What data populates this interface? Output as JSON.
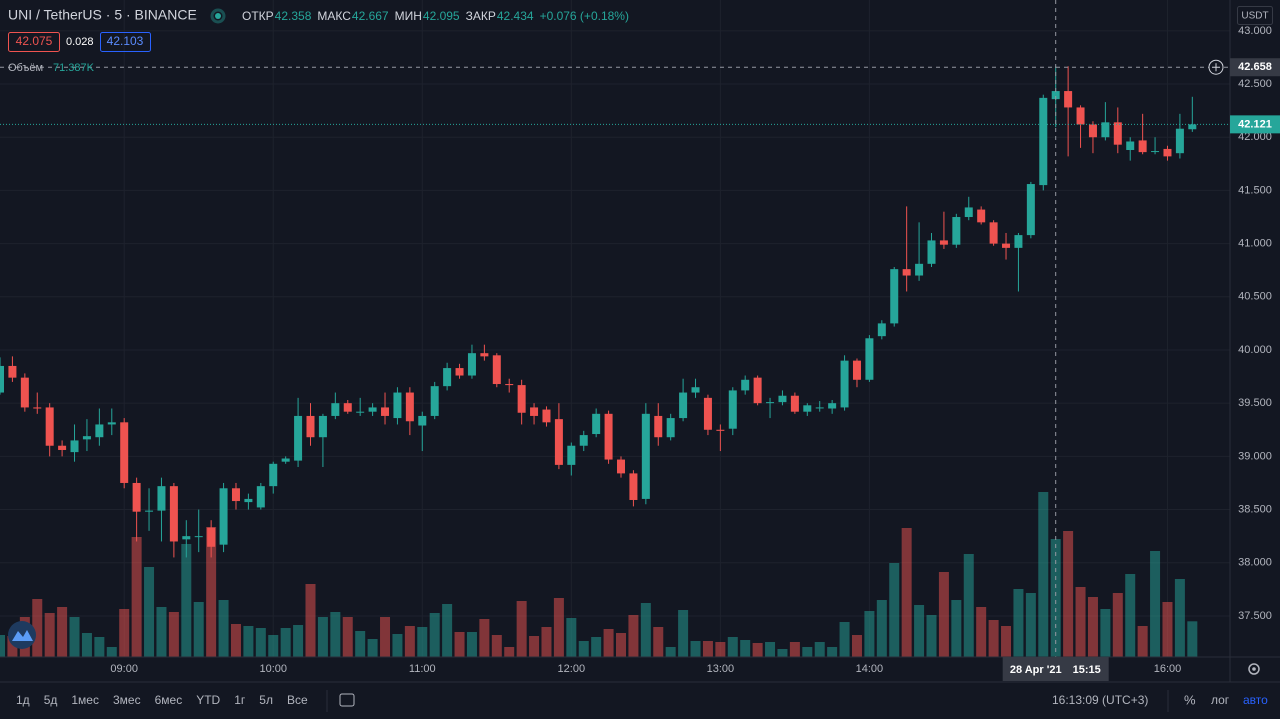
{
  "header": {
    "title": "UNI / TetherUS · 5 · BINANCE",
    "ohlc": [
      {
        "label": "ОТКР",
        "value": 42.358
      },
      {
        "label": "МАКС",
        "value": 42.667
      },
      {
        "label": "МИН",
        "value": 42.095
      },
      {
        "label": "ЗАКР",
        "value": 42.434
      }
    ],
    "change": "+0.076 (+0.18%)",
    "bid": 42.075,
    "spread": 0.028,
    "ask": 42.103,
    "currency": "USDT"
  },
  "toolbar": {
    "ranges": [
      "1д",
      "5д",
      "1мес",
      "3мес",
      "6мес",
      "YTD",
      "1г",
      "5л",
      "Все"
    ],
    "clock": "16:13:09 (UTC+3)",
    "percent": "%",
    "log": "лог",
    "auto": "авто"
  },
  "chart_data": {
    "type": "candlestick",
    "up_color": "#26a69a",
    "down_color": "#ef5350",
    "grid": true,
    "categories": [
      null,
      null,
      null,
      null,
      null,
      null,
      null,
      null,
      null,
      null,
      "09:00",
      null,
      null,
      null,
      null,
      null,
      null,
      null,
      null,
      null,
      null,
      null,
      "10:00",
      null,
      null,
      null,
      null,
      null,
      null,
      null,
      null,
      null,
      null,
      null,
      "11:00",
      null,
      null,
      null,
      null,
      null,
      null,
      null,
      null,
      null,
      null,
      null,
      "12:00",
      null,
      null,
      null,
      null,
      null,
      null,
      null,
      null,
      null,
      null,
      null,
      "13:00",
      null,
      null,
      null,
      null,
      null,
      null,
      null,
      null,
      null,
      null,
      null,
      "14:00",
      null,
      null,
      null,
      null,
      null,
      null,
      null,
      null,
      null,
      null,
      null,
      null,
      null,
      null,
      null,
      null,
      null,
      null,
      null,
      null,
      null,
      null,
      null,
      "16:00",
      null,
      null
    ],
    "open": [
      39.6,
      39.85,
      39.74,
      39.46,
      39.46,
      39.1,
      39.04,
      39.16,
      39.18,
      39.3,
      39.32,
      38.75,
      38.48,
      38.49,
      38.72,
      38.22,
      38.25,
      38.33,
      38.17,
      38.7,
      38.57,
      38.52,
      38.72,
      38.95,
      38.96,
      39.38,
      39.18,
      39.38,
      39.5,
      39.42,
      39.42,
      39.46,
      39.36,
      39.6,
      39.29,
      39.38,
      39.66,
      39.83,
      39.76,
      39.97,
      39.95,
      39.68,
      39.67,
      39.46,
      39.44,
      39.35,
      38.92,
      39.1,
      39.21,
      39.4,
      38.97,
      38.84,
      38.6,
      39.38,
      39.18,
      39.36,
      39.6,
      39.55,
      39.25,
      39.26,
      39.62,
      39.74,
      39.5,
      39.51,
      39.57,
      39.42,
      39.46,
      39.45,
      39.46,
      39.9,
      39.72,
      40.13,
      40.25,
      40.76,
      40.7,
      40.81,
      41.03,
      40.99,
      41.25,
      41.32,
      41.2,
      41.0,
      40.96,
      41.08,
      41.55,
      42.358,
      42.434,
      42.28,
      42.12,
      42.0,
      42.14,
      41.88,
      41.97,
      41.87,
      41.89,
      41.85,
      42.075
    ],
    "high": [
      39.93,
      39.94,
      39.78,
      39.6,
      39.5,
      39.15,
      39.3,
      39.35,
      39.45,
      39.45,
      39.36,
      38.8,
      38.7,
      38.8,
      38.75,
      38.4,
      38.5,
      38.4,
      38.75,
      38.75,
      38.65,
      38.75,
      38.95,
      39.0,
      39.55,
      39.5,
      39.4,
      39.6,
      39.53,
      39.55,
      39.5,
      39.6,
      39.65,
      39.65,
      39.42,
      39.7,
      39.88,
      39.87,
      40.05,
      40.05,
      39.97,
      39.73,
      39.72,
      39.5,
      39.47,
      39.5,
      39.13,
      39.24,
      39.45,
      39.43,
      39.0,
      38.87,
      39.5,
      39.5,
      39.4,
      39.73,
      39.73,
      39.58,
      39.3,
      39.65,
      39.76,
      39.76,
      39.55,
      39.62,
      39.6,
      39.5,
      39.52,
      39.53,
      39.95,
      39.92,
      40.14,
      40.28,
      40.78,
      41.35,
      41.2,
      41.1,
      41.3,
      41.28,
      41.44,
      41.35,
      41.22,
      41.1,
      41.1,
      41.58,
      42.4,
      42.667,
      42.667,
      42.3,
      42.15,
      42.33,
      42.28,
      42.0,
      42.22,
      42.0,
      41.92,
      42.22,
      42.38
    ],
    "low": [
      39.58,
      39.7,
      39.42,
      39.4,
      39.0,
      39.0,
      38.95,
      39.05,
      39.1,
      39.2,
      38.7,
      38.2,
      38.3,
      38.2,
      38.05,
      38.05,
      38.1,
      38.05,
      38.1,
      38.5,
      38.5,
      38.5,
      38.65,
      38.93,
      38.9,
      39.1,
      38.9,
      39.35,
      39.4,
      39.38,
      39.38,
      39.3,
      39.3,
      39.2,
      39.05,
      39.35,
      39.62,
      39.73,
      39.73,
      39.9,
      39.65,
      39.6,
      39.3,
      39.3,
      39.28,
      38.88,
      38.82,
      39.05,
      39.18,
      38.93,
      38.8,
      38.53,
      38.55,
      39.1,
      39.15,
      39.33,
      39.55,
      39.2,
      39.05,
      39.2,
      39.58,
      39.48,
      39.36,
      39.48,
      39.4,
      39.38,
      39.42,
      39.4,
      39.43,
      39.65,
      39.7,
      40.1,
      40.22,
      40.55,
      40.65,
      40.78,
      40.95,
      40.96,
      41.22,
      41.18,
      40.98,
      40.85,
      40.55,
      41.05,
      41.5,
      42.095,
      41.82,
      41.9,
      41.85,
      41.97,
      41.85,
      41.78,
      41.84,
      41.84,
      41.78,
      41.8,
      42.05
    ],
    "close": [
      39.85,
      39.74,
      39.46,
      39.45,
      39.1,
      39.06,
      39.15,
      39.19,
      39.3,
      39.32,
      38.75,
      38.48,
      38.49,
      38.72,
      38.2,
      38.25,
      38.25,
      38.15,
      38.7,
      38.58,
      38.6,
      38.72,
      38.93,
      38.98,
      39.38,
      39.18,
      39.38,
      39.5,
      39.42,
      39.42,
      39.46,
      39.38,
      39.6,
      39.33,
      39.38,
      39.66,
      39.83,
      39.76,
      39.97,
      39.94,
      39.68,
      39.67,
      39.41,
      39.38,
      39.32,
      38.92,
      39.1,
      39.2,
      39.4,
      38.97,
      38.84,
      38.59,
      39.4,
      39.18,
      39.36,
      39.6,
      39.65,
      39.25,
      39.24,
      39.62,
      39.72,
      39.5,
      39.51,
      39.57,
      39.42,
      39.48,
      39.46,
      39.5,
      39.9,
      39.72,
      40.11,
      40.25,
      40.76,
      40.7,
      40.81,
      41.03,
      40.99,
      41.25,
      41.34,
      41.2,
      41.0,
      40.96,
      41.08,
      41.56,
      42.37,
      42.434,
      42.28,
      42.12,
      42.0,
      42.14,
      41.93,
      41.96,
      41.86,
      41.87,
      41.82,
      42.08,
      42.121
    ],
    "volume": [
      44000,
      42000,
      80000,
      116000,
      88000,
      100000,
      80000,
      48000,
      40000,
      20000,
      96000,
      240000,
      180000,
      100000,
      90000,
      226000,
      110000,
      260000,
      114000,
      66000,
      62000,
      58000,
      44000,
      58000,
      64000,
      146000,
      80000,
      90000,
      80000,
      52000,
      36000,
      80000,
      46000,
      62000,
      60000,
      88000,
      106000,
      50000,
      50000,
      76000,
      44000,
      20000,
      112000,
      42000,
      60000,
      118000,
      78000,
      32000,
      40000,
      56000,
      48000,
      84000,
      108000,
      60000,
      20000,
      94000,
      32000,
      32000,
      30000,
      40000,
      34000,
      28000,
      30000,
      16000,
      30000,
      20000,
      30000,
      20000,
      70000,
      44000,
      92000,
      114000,
      188000,
      258000,
      104000,
      84000,
      170000,
      114000,
      206000,
      100000,
      74000,
      62000,
      136000,
      128000,
      330000,
      236000,
      252000,
      140000,
      120000,
      96000,
      128000,
      166000,
      62000,
      212000,
      110000,
      156000,
      71387
    ],
    "volume_legend": {
      "label": "Объём",
      "value": "71.387K"
    },
    "ylim": [
      37.114,
      43.29
    ],
    "yticks": [
      {
        "value": 37.5,
        "label": "37.500"
      },
      {
        "value": 38.0,
        "label": "38.000"
      },
      {
        "value": 38.5,
        "label": "38.500"
      },
      {
        "value": 39.0,
        "label": "39.000"
      },
      {
        "value": 39.5,
        "label": "39.500"
      },
      {
        "value": 40.0,
        "label": "40.000"
      },
      {
        "value": 40.5,
        "label": "40.500"
      },
      {
        "value": 41.0,
        "label": "41.000"
      },
      {
        "value": 41.5,
        "label": "41.500"
      },
      {
        "value": 42.0,
        "label": "42.000"
      },
      {
        "value": 42.5,
        "label": "42.500"
      },
      {
        "value": 43.0,
        "label": "43.000"
      }
    ],
    "last_price": 42.121,
    "crosshair": {
      "price": 42.658,
      "date_label": "28 Apr '21",
      "time_label": "15:15"
    }
  }
}
